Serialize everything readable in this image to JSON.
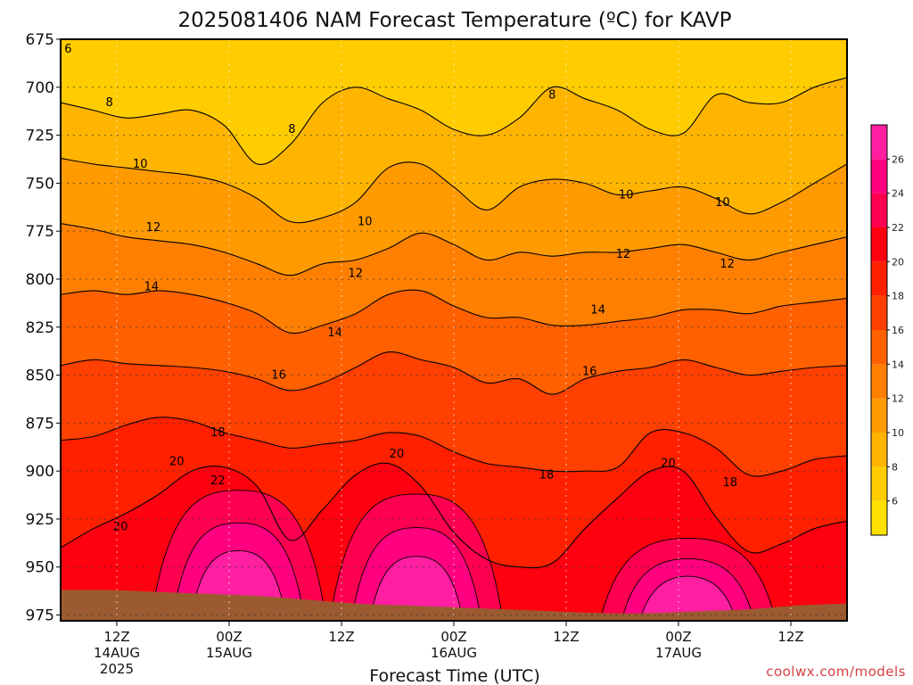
{
  "chart_data": {
    "type": "heatmap",
    "title": "2025081406 NAM Forecast Temperature (ºC) for KAVP",
    "xlabel": "Forecast Time (UTC)",
    "ylabel": "",
    "credit": "coolwx.com/models",
    "x_hours_range": [
      0,
      84
    ],
    "x_ticks": [
      {
        "hour": 6,
        "label": "12Z",
        "date": "14AUG",
        "year": "2025"
      },
      {
        "hour": 18,
        "label": "00Z",
        "date": "15AUG",
        "year": ""
      },
      {
        "hour": 30,
        "label": "12Z",
        "date": "",
        "year": ""
      },
      {
        "hour": 42,
        "label": "00Z",
        "date": "16AUG",
        "year": ""
      },
      {
        "hour": 54,
        "label": "12Z",
        "date": "",
        "year": ""
      },
      {
        "hour": 66,
        "label": "00Z",
        "date": "17AUG",
        "year": ""
      },
      {
        "hour": 78,
        "label": "12Z",
        "date": "",
        "year": ""
      }
    ],
    "y_ticks": [
      675,
      700,
      725,
      750,
      775,
      800,
      825,
      850,
      875,
      900,
      925,
      950,
      975
    ],
    "ylim": [
      675,
      978
    ],
    "colorbar": {
      "levels": [
        4,
        6,
        8,
        10,
        12,
        14,
        16,
        18,
        20,
        22,
        24,
        26,
        28
      ],
      "tick_labels": [
        "6",
        "8",
        "10",
        "12",
        "14",
        "16",
        "18",
        "20",
        "22",
        "24",
        "26"
      ],
      "colors": [
        "#ffe000",
        "#ffcc00",
        "#ffb400",
        "#ff9a00",
        "#ff8000",
        "#ff6000",
        "#ff4000",
        "#ff2000",
        "#ff0010",
        "#ff0050",
        "#ff0080",
        "#ff1fa0"
      ]
    },
    "ground_color": "#9c5a30",
    "isotherms": [
      {
        "value": 8,
        "pressures": [
          708,
          712,
          716,
          714,
          712,
          720,
          740,
          730,
          708,
          700,
          706,
          712,
          722,
          725,
          716,
          700,
          706,
          712,
          722,
          724,
          704,
          708,
          708,
          700,
          695
        ]
      },
      {
        "value": 10,
        "pressures": [
          737,
          740,
          742,
          744,
          746,
          750,
          758,
          770,
          768,
          760,
          742,
          740,
          752,
          764,
          752,
          748,
          750,
          756,
          754,
          752,
          758,
          766,
          760,
          750,
          740
        ]
      },
      {
        "value": 12,
        "pressures": [
          771,
          774,
          778,
          780,
          782,
          786,
          792,
          798,
          792,
          790,
          784,
          776,
          782,
          790,
          786,
          788,
          786,
          786,
          784,
          782,
          786,
          790,
          786,
          782,
          778
        ]
      },
      {
        "value": 14,
        "pressures": [
          808,
          806,
          808,
          806,
          808,
          812,
          818,
          828,
          824,
          818,
          808,
          806,
          814,
          820,
          820,
          824,
          824,
          822,
          820,
          816,
          816,
          818,
          814,
          812,
          810
        ]
      },
      {
        "value": 16,
        "pressures": [
          845,
          842,
          844,
          845,
          846,
          848,
          852,
          858,
          854,
          846,
          838,
          842,
          846,
          854,
          852,
          860,
          852,
          848,
          846,
          842,
          846,
          850,
          848,
          846,
          845
        ]
      },
      {
        "value": 18,
        "pressures": [
          884,
          882,
          876,
          872,
          874,
          880,
          884,
          888,
          886,
          884,
          880,
          882,
          890,
          896,
          898,
          900,
          900,
          898,
          880,
          880,
          888,
          902,
          900,
          894,
          892
        ]
      },
      {
        "value": 20,
        "pressures": [
          940,
          930,
          922,
          912,
          900,
          898,
          908,
          936,
          920,
          902,
          896,
          908,
          932,
          946,
          950,
          948,
          930,
          914,
          900,
          900,
          924,
          942,
          938,
          930,
          926
        ]
      }
    ],
    "warm_cores": [
      {
        "value": 22,
        "center_hour": 19,
        "top_pressure": 910,
        "bottom_pressure": 968
      },
      {
        "value": 22,
        "center_hour": 38,
        "top_pressure": 912,
        "bottom_pressure": 972
      },
      {
        "value": 22,
        "center_hour": 67,
        "top_pressure": 935,
        "bottom_pressure": 968
      }
    ],
    "contour_labels": [
      {
        "text": "6",
        "hour": 0.8,
        "p": 680
      },
      {
        "text": "8",
        "hour": 5.2,
        "p": 708
      },
      {
        "text": "8",
        "hour": 24.7,
        "p": 722
      },
      {
        "text": "8",
        "hour": 52.5,
        "p": 704
      },
      {
        "text": "10",
        "hour": 8.5,
        "p": 740
      },
      {
        "text": "10",
        "hour": 32.5,
        "p": 770
      },
      {
        "text": "10",
        "hour": 60.4,
        "p": 756
      },
      {
        "text": "10",
        "hour": 70.7,
        "p": 760
      },
      {
        "text": "12",
        "hour": 9.9,
        "p": 773
      },
      {
        "text": "12",
        "hour": 31.5,
        "p": 797
      },
      {
        "text": "12",
        "hour": 60.1,
        "p": 787
      },
      {
        "text": "12",
        "hour": 71.2,
        "p": 792
      },
      {
        "text": "14",
        "hour": 9.7,
        "p": 804
      },
      {
        "text": "14",
        "hour": 29.3,
        "p": 828
      },
      {
        "text": "14",
        "hour": 57.4,
        "p": 816
      },
      {
        "text": "16",
        "hour": 23.3,
        "p": 850
      },
      {
        "text": "16",
        "hour": 56.5,
        "p": 848
      },
      {
        "text": "18",
        "hour": 16.8,
        "p": 880
      },
      {
        "text": "18",
        "hour": 51.9,
        "p": 902
      },
      {
        "text": "18",
        "hour": 71.5,
        "p": 906
      },
      {
        "text": "20",
        "hour": 12.4,
        "p": 895
      },
      {
        "text": "20",
        "hour": 6.4,
        "p": 929
      },
      {
        "text": "20",
        "hour": 35.9,
        "p": 891
      },
      {
        "text": "20",
        "hour": 64.9,
        "p": 896
      },
      {
        "text": "22",
        "hour": 16.8,
        "p": 905
      }
    ],
    "ground_pressures": [
      962,
      962,
      963,
      964,
      965,
      967,
      969,
      970,
      971,
      972,
      973,
      974,
      974,
      973,
      972,
      970,
      969
    ]
  }
}
